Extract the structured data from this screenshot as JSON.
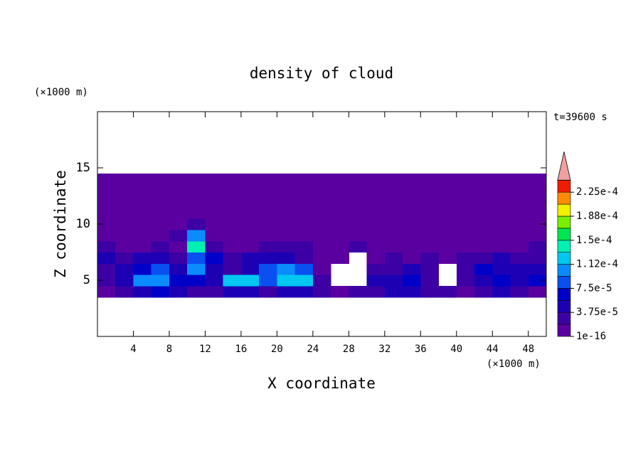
{
  "chart_data": {
    "type": "contour",
    "title": "density of cloud",
    "x_label": "X coordinate",
    "y_label": "Z coordinate",
    "x_unit": "(×1000 m)",
    "y_unit": "(×1000 m)",
    "time_label": "t=39600 s",
    "xlim": [
      0,
      50
    ],
    "ylim": [
      0,
      20
    ],
    "xticks": [
      4,
      8,
      12,
      16,
      20,
      24,
      28,
      32,
      36,
      40,
      44,
      48
    ],
    "yticks": [
      5,
      10,
      15
    ],
    "x": [
      1,
      3,
      5,
      7,
      9,
      11,
      13,
      15,
      17,
      19,
      21,
      23,
      25,
      27,
      29,
      31,
      33,
      35,
      37,
      39,
      41,
      43,
      45,
      47,
      49
    ],
    "y": [
      4,
      5,
      6,
      7,
      8,
      9,
      10,
      11,
      12,
      13,
      14
    ],
    "z": [
      [
        1e-16,
        2e-05,
        4e-05,
        6e-05,
        4e-05,
        3e-05,
        2e-05,
        4e-05,
        5e-05,
        3e-05,
        4e-05,
        5e-05,
        2e-05,
        1e-16,
        2e-05,
        3e-05,
        4e-05,
        5e-05,
        3e-05,
        2e-05,
        1e-16,
        3e-05,
        4e-05,
        2e-05,
        1e-16
      ],
      [
        2e-05,
        4e-05,
        0.0001,
        0.0001,
        6e-05,
        7e-05,
        5e-05,
        0.00013,
        0.00013,
        8e-05,
        0.00012,
        0.00013,
        2e-05,
        null,
        null,
        4e-05,
        5e-05,
        6e-05,
        3e-05,
        null,
        2e-05,
        5e-05,
        6e-05,
        4e-05,
        6e-05
      ],
      [
        3e-05,
        5e-05,
        7e-05,
        9e-05,
        5e-05,
        0.0001,
        4e-05,
        3e-05,
        5e-05,
        9e-05,
        0.0001,
        8e-05,
        1e-16,
        null,
        null,
        3e-05,
        2e-05,
        4e-05,
        2e-05,
        null,
        3e-05,
        6e-05,
        4e-05,
        5e-05,
        4e-05
      ],
      [
        4e-05,
        3e-05,
        4e-05,
        5e-05,
        3e-05,
        9e-05,
        6e-05,
        3e-05,
        4e-05,
        5e-05,
        4e-05,
        3e-05,
        1e-16,
        1e-16,
        null,
        1e-16,
        2e-05,
        1e-16,
        2e-05,
        1e-16,
        2e-05,
        3e-05,
        4e-05,
        2e-05,
        3e-05
      ],
      [
        2e-05,
        1e-16,
        1e-16,
        2e-05,
        1e-16,
        0.00014,
        3e-05,
        1e-16,
        1e-16,
        2e-05,
        3e-05,
        2e-05,
        1e-16,
        1e-16,
        2e-05,
        1e-16,
        1e-16,
        1e-16,
        1e-16,
        1e-16,
        1e-16,
        1e-16,
        1e-16,
        1e-16,
        2e-05
      ],
      [
        1e-16,
        1e-16,
        1e-16,
        1e-16,
        2e-05,
        0.0001,
        1e-16,
        1e-16,
        1e-16,
        1e-16,
        1e-16,
        1e-16,
        1e-16,
        1e-16,
        1e-16,
        1e-16,
        1e-16,
        1e-16,
        1e-16,
        1e-16,
        1e-16,
        1e-16,
        1e-16,
        1e-16,
        1e-16
      ],
      [
        1e-16,
        1e-16,
        1e-16,
        1e-16,
        1e-16,
        3e-05,
        1e-16,
        1e-16,
        1e-16,
        1e-16,
        1e-16,
        1e-16,
        1e-16,
        1e-16,
        1e-16,
        1e-16,
        1e-16,
        1e-16,
        1e-16,
        1e-16,
        1e-16,
        1e-16,
        1e-16,
        1e-16,
        1e-16
      ],
      [
        1e-16,
        1e-16,
        1e-16,
        1e-16,
        1e-16,
        1e-16,
        1e-16,
        1e-16,
        1e-16,
        1e-16,
        1e-16,
        1e-16,
        1e-16,
        1e-16,
        1e-16,
        1e-16,
        1e-16,
        1e-16,
        1e-16,
        1e-16,
        1e-16,
        1e-16,
        1e-16,
        1e-16,
        1e-16
      ],
      [
        1e-16,
        1e-16,
        1e-16,
        1e-16,
        1e-16,
        1e-16,
        1e-16,
        1e-16,
        1e-16,
        1e-16,
        1e-16,
        1e-16,
        1e-16,
        1e-16,
        1e-16,
        1e-16,
        1e-16,
        1e-16,
        1e-16,
        1e-16,
        1e-16,
        1e-16,
        1e-16,
        1e-16,
        1e-16
      ],
      [
        1e-16,
        1e-16,
        1e-16,
        1e-16,
        1e-16,
        1e-16,
        1e-16,
        1e-16,
        1e-16,
        1e-16,
        1e-16,
        1e-16,
        1e-16,
        1e-16,
        1e-16,
        1e-16,
        1e-16,
        1e-16,
        1e-16,
        1e-16,
        1e-16,
        1e-16,
        1e-16,
        1e-16,
        1e-16
      ],
      [
        1e-16,
        1e-16,
        1e-16,
        1e-16,
        1e-16,
        1e-16,
        1e-16,
        1e-16,
        1e-16,
        1e-16,
        1e-16,
        1e-16,
        1e-16,
        1e-16,
        1e-16,
        1e-16,
        1e-16,
        1e-16,
        1e-16,
        1e-16,
        1e-16,
        1e-16,
        1e-16,
        1e-16,
        1e-16
      ]
    ],
    "levels": [
      1e-16,
      1.875e-05,
      3.75e-05,
      5.625e-05,
      7.5e-05,
      9.375e-05,
      0.0001125,
      0.00013125,
      0.00015,
      0.00016875,
      0.0001875,
      0.00020625,
      0.000225,
      0.00024375
    ],
    "colors": [
      "#5a00a0",
      "#3c00a5",
      "#1e00b4",
      "#0000c8",
      "#0a50f0",
      "#0a8cff",
      "#00c8f0",
      "#00f0b4",
      "#00e650",
      "#78f000",
      "#f0f000",
      "#ff8c00",
      "#f01e00"
    ],
    "extend_color": "#f0a0a0",
    "colorbar_ticks": [
      1e-16,
      {
        "value": 3.75e-05,
        "label": "3.75e-5"
      },
      {
        "value": 7.5e-05,
        "label": "7.5e-5"
      },
      {
        "value": 0.0001125,
        "label": "1.12e-4"
      },
      {
        "value": 0.00015,
        "label": "1.5e-4"
      },
      {
        "value": 0.0001875,
        "label": "1.88e-4"
      },
      {
        "value": 0.000225,
        "label": "2.25e-4"
      }
    ]
  }
}
